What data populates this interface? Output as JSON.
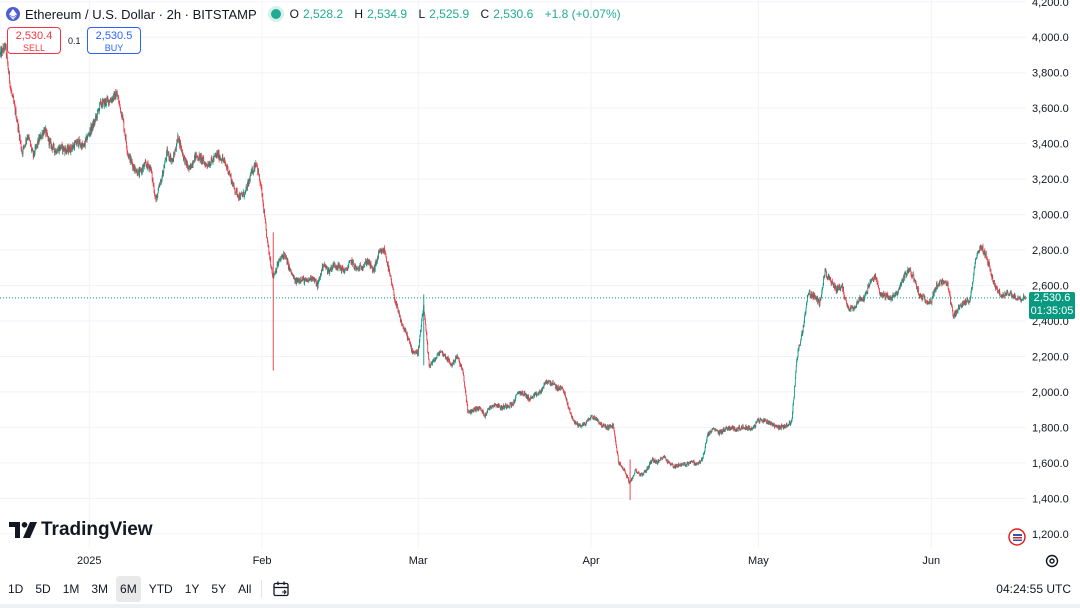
{
  "header": {
    "symbol_title": "Ethereum / U.S. Dollar · 2h · BITSTAMP",
    "open_key": "O",
    "open": "2,528.2",
    "high_key": "H",
    "high": "2,534.9",
    "low_key": "L",
    "low": "2,525.9",
    "close_key": "C",
    "close": "2,530.6",
    "change": "+1.8 (+0.07%)"
  },
  "trade": {
    "sell_price": "2,530.4",
    "sell_label": "SELL",
    "spread": "0.1",
    "buy_price": "2,530.5",
    "buy_label": "BUY"
  },
  "last_price": {
    "value": "2,530.6",
    "countdown": "01:35:05"
  },
  "branding": {
    "logo_text": "TradingView"
  },
  "bottom_bar": {
    "ranges": [
      "1D",
      "5D",
      "1M",
      "3M",
      "6M",
      "YTD",
      "1Y",
      "5Y",
      "All"
    ],
    "active_range": "6M",
    "clock": "04:24:55 UTC"
  },
  "colors": {
    "up": "#089981",
    "down": "#f23645",
    "accent": "#2962ff",
    "grid": "#f0f3fa"
  },
  "icons": [
    "ethereum-icon",
    "live-status-icon",
    "tradingview-logo-icon",
    "calendar-icon",
    "settings-icon",
    "economic-events-icon"
  ],
  "chart_data": {
    "type": "candlestick",
    "title": "Ethereum / U.S. Dollar · 2h · BITSTAMP",
    "interval": "2h",
    "y_axis": {
      "ticks": [
        1200,
        1400,
        1600,
        1800,
        2000,
        2200,
        2400,
        2600,
        2800,
        3000,
        3200,
        3400,
        3600,
        3800,
        4000,
        4200
      ],
      "tick_labels": [
        "1,200.0",
        "1,400.0",
        "1,600.0",
        "1,800.0",
        "2,000.0",
        "2,200.0",
        "2,400.0",
        "2,600.0",
        "2,800.0",
        "3,000.0",
        "3,200.0",
        "3,400.0",
        "3,600.0",
        "3,800.0",
        "4,000.0",
        "4,200.0"
      ],
      "ylim": [
        1120,
        4210
      ],
      "position": "right"
    },
    "x_axis": {
      "tick_labels": [
        "2025",
        "Feb",
        "Mar",
        "Apr",
        "May",
        "Jun"
      ],
      "tick_dates": [
        "2025-01-01",
        "2025-02-01",
        "2025-03-01",
        "2025-04-01",
        "2025-05-01",
        "2025-06-01"
      ],
      "xlim": [
        "2024-12-16",
        "2025-06-17"
      ]
    },
    "grid": true,
    "last_close": 2530.6,
    "path": [
      [
        "2024-12-16",
        3900
      ],
      [
        "2024-12-17",
        3950
      ],
      [
        "2024-12-18",
        3700
      ],
      [
        "2024-12-19",
        3550
      ],
      [
        "2024-12-20",
        3350
      ],
      [
        "2024-12-21",
        3450
      ],
      [
        "2024-12-22",
        3330
      ],
      [
        "2024-12-23",
        3420
      ],
      [
        "2024-12-24",
        3480
      ],
      [
        "2024-12-25",
        3400
      ],
      [
        "2024-12-26",
        3360
      ],
      [
        "2024-12-27",
        3380
      ],
      [
        "2024-12-28",
        3360
      ],
      [
        "2024-12-29",
        3380
      ],
      [
        "2024-12-30",
        3410
      ],
      [
        "2024-12-31",
        3380
      ],
      [
        "2025-01-01",
        3460
      ],
      [
        "2025-01-02",
        3520
      ],
      [
        "2025-01-03",
        3620
      ],
      [
        "2025-01-05",
        3650
      ],
      [
        "2025-01-06",
        3680
      ],
      [
        "2025-01-07",
        3550
      ],
      [
        "2025-01-08",
        3340
      ],
      [
        "2025-01-09",
        3270
      ],
      [
        "2025-01-10",
        3230
      ],
      [
        "2025-01-11",
        3280
      ],
      [
        "2025-01-12",
        3270
      ],
      [
        "2025-01-13",
        3080
      ],
      [
        "2025-01-14",
        3200
      ],
      [
        "2025-01-15",
        3350
      ],
      [
        "2025-01-16",
        3300
      ],
      [
        "2025-01-17",
        3440
      ],
      [
        "2025-01-18",
        3320
      ],
      [
        "2025-01-19",
        3250
      ],
      [
        "2025-01-20",
        3330
      ],
      [
        "2025-01-21",
        3320
      ],
      [
        "2025-01-22",
        3280
      ],
      [
        "2025-01-23",
        3300
      ],
      [
        "2025-01-24",
        3340
      ],
      [
        "2025-01-25",
        3310
      ],
      [
        "2025-01-26",
        3250
      ],
      [
        "2025-01-27",
        3150
      ],
      [
        "2025-01-28",
        3100
      ],
      [
        "2025-01-29",
        3120
      ],
      [
        "2025-01-30",
        3220
      ],
      [
        "2025-01-31",
        3300
      ],
      [
        "2025-02-01",
        3120
      ],
      [
        "2025-02-02",
        2840
      ],
      [
        "2025-02-03",
        2650
      ],
      [
        "2025-02-04",
        2730
      ],
      [
        "2025-02-05",
        2780
      ],
      [
        "2025-02-06",
        2690
      ],
      [
        "2025-02-07",
        2620
      ],
      [
        "2025-02-08",
        2640
      ],
      [
        "2025-02-09",
        2620
      ],
      [
        "2025-02-10",
        2650
      ],
      [
        "2025-02-11",
        2600
      ],
      [
        "2025-02-12",
        2720
      ],
      [
        "2025-02-13",
        2680
      ],
      [
        "2025-02-14",
        2720
      ],
      [
        "2025-02-15",
        2700
      ],
      [
        "2025-02-16",
        2680
      ],
      [
        "2025-02-17",
        2740
      ],
      [
        "2025-02-18",
        2690
      ],
      [
        "2025-02-19",
        2710
      ],
      [
        "2025-02-20",
        2740
      ],
      [
        "2025-02-21",
        2680
      ],
      [
        "2025-02-22",
        2780
      ],
      [
        "2025-02-23",
        2800
      ],
      [
        "2025-02-24",
        2650
      ],
      [
        "2025-02-25",
        2500
      ],
      [
        "2025-02-26",
        2390
      ],
      [
        "2025-02-27",
        2320
      ],
      [
        "2025-02-28",
        2230
      ],
      [
        "2025-03-01",
        2220
      ],
      [
        "2025-03-02",
        2480
      ],
      [
        "2025-03-03",
        2150
      ],
      [
        "2025-03-04",
        2180
      ],
      [
        "2025-03-05",
        2230
      ],
      [
        "2025-03-06",
        2200
      ],
      [
        "2025-03-07",
        2150
      ],
      [
        "2025-03-08",
        2200
      ],
      [
        "2025-03-09",
        2120
      ],
      [
        "2025-03-10",
        1880
      ],
      [
        "2025-03-11",
        1900
      ],
      [
        "2025-03-12",
        1910
      ],
      [
        "2025-03-13",
        1870
      ],
      [
        "2025-03-14",
        1920
      ],
      [
        "2025-03-15",
        1930
      ],
      [
        "2025-03-16",
        1910
      ],
      [
        "2025-03-17",
        1925
      ],
      [
        "2025-03-18",
        1930
      ],
      [
        "2025-03-19",
        2000
      ],
      [
        "2025-03-20",
        1990
      ],
      [
        "2025-03-21",
        1960
      ],
      [
        "2025-03-22",
        1980
      ],
      [
        "2025-03-23",
        2000
      ],
      [
        "2025-03-24",
        2060
      ],
      [
        "2025-03-25",
        2050
      ],
      [
        "2025-03-26",
        2020
      ],
      [
        "2025-03-27",
        2020
      ],
      [
        "2025-03-28",
        1910
      ],
      [
        "2025-03-29",
        1830
      ],
      [
        "2025-03-30",
        1810
      ],
      [
        "2025-03-31",
        1820
      ],
      [
        "2025-04-01",
        1860
      ],
      [
        "2025-04-02",
        1850
      ],
      [
        "2025-04-03",
        1810
      ],
      [
        "2025-04-04",
        1800
      ],
      [
        "2025-04-05",
        1810
      ],
      [
        "2025-04-06",
        1600
      ],
      [
        "2025-04-07",
        1560
      ],
      [
        "2025-04-08",
        1480
      ],
      [
        "2025-04-09",
        1560
      ],
      [
        "2025-04-10",
        1530
      ],
      [
        "2025-04-11",
        1560
      ],
      [
        "2025-04-12",
        1620
      ],
      [
        "2025-04-13",
        1600
      ],
      [
        "2025-04-14",
        1640
      ],
      [
        "2025-04-15",
        1600
      ],
      [
        "2025-04-16",
        1580
      ],
      [
        "2025-04-17",
        1590
      ],
      [
        "2025-04-18",
        1590
      ],
      [
        "2025-04-19",
        1610
      ],
      [
        "2025-04-20",
        1590
      ],
      [
        "2025-04-21",
        1620
      ],
      [
        "2025-04-22",
        1760
      ],
      [
        "2025-04-23",
        1790
      ],
      [
        "2025-04-24",
        1770
      ],
      [
        "2025-04-25",
        1790
      ],
      [
        "2025-04-26",
        1800
      ],
      [
        "2025-04-27",
        1790
      ],
      [
        "2025-04-28",
        1800
      ],
      [
        "2025-04-29",
        1800
      ],
      [
        "2025-04-30",
        1790
      ],
      [
        "2025-05-01",
        1840
      ],
      [
        "2025-05-02",
        1840
      ],
      [
        "2025-05-03",
        1830
      ],
      [
        "2025-05-04",
        1810
      ],
      [
        "2025-05-05",
        1800
      ],
      [
        "2025-05-06",
        1810
      ],
      [
        "2025-05-07",
        1830
      ],
      [
        "2025-05-08",
        2200
      ],
      [
        "2025-05-09",
        2350
      ],
      [
        "2025-05-10",
        2560
      ],
      [
        "2025-05-11",
        2540
      ],
      [
        "2025-05-12",
        2500
      ],
      [
        "2025-05-13",
        2680
      ],
      [
        "2025-05-14",
        2620
      ],
      [
        "2025-05-15",
        2580
      ],
      [
        "2025-05-16",
        2600
      ],
      [
        "2025-05-17",
        2480
      ],
      [
        "2025-05-18",
        2470
      ],
      [
        "2025-05-19",
        2520
      ],
      [
        "2025-05-20",
        2530
      ],
      [
        "2025-05-21",
        2610
      ],
      [
        "2025-05-22",
        2650
      ],
      [
        "2025-05-23",
        2550
      ],
      [
        "2025-05-24",
        2540
      ],
      [
        "2025-05-25",
        2530
      ],
      [
        "2025-05-26",
        2560
      ],
      [
        "2025-05-27",
        2640
      ],
      [
        "2025-05-28",
        2690
      ],
      [
        "2025-05-29",
        2640
      ],
      [
        "2025-05-30",
        2540
      ],
      [
        "2025-05-31",
        2520
      ],
      [
        "2025-06-01",
        2510
      ],
      [
        "2025-06-02",
        2600
      ],
      [
        "2025-06-03",
        2620
      ],
      [
        "2025-06-04",
        2600
      ],
      [
        "2025-06-05",
        2420
      ],
      [
        "2025-06-06",
        2480
      ],
      [
        "2025-06-07",
        2500
      ],
      [
        "2025-06-08",
        2520
      ],
      [
        "2025-06-09",
        2750
      ],
      [
        "2025-06-10",
        2820
      ],
      [
        "2025-06-11",
        2760
      ],
      [
        "2025-06-12",
        2640
      ],
      [
        "2025-06-13",
        2560
      ],
      [
        "2025-06-14",
        2540
      ],
      [
        "2025-06-15",
        2560
      ],
      [
        "2025-06-16",
        2540
      ],
      [
        "2025-06-17",
        2530
      ]
    ]
  }
}
